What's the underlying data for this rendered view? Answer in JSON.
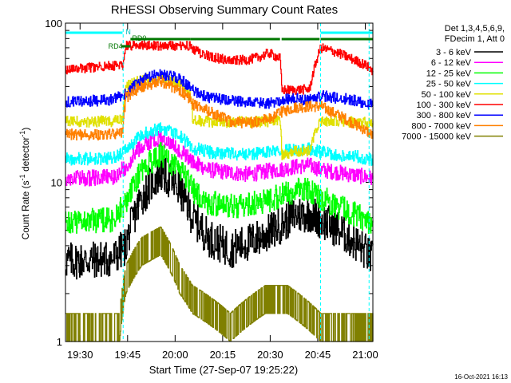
{
  "chart_data": {
    "type": "line",
    "title": "RHESSI Observing Summary Count Rates",
    "xlabel": "Start Time (27-Sep-07 19:25:22)",
    "ylabel_main": "Count Rate (s",
    "ylabel_sup1": "-1",
    "ylabel_mid": " detector",
    "ylabel_sup2": "-1",
    "ylabel_end": ")",
    "yscale": "log",
    "ylim": [
      1,
      100
    ],
    "xlim_minutes": [
      0,
      97
    ],
    "ytick_labels": [
      "1",
      "10",
      "100"
    ],
    "x_ticks": [
      {
        "t": 4.6,
        "label": "19:30"
      },
      {
        "t": 19.6,
        "label": "19:45"
      },
      {
        "t": 34.6,
        "label": "20:00"
      },
      {
        "t": 49.6,
        "label": "20:15"
      },
      {
        "t": 64.6,
        "label": "20:30"
      },
      {
        "t": 79.6,
        "label": "20:45"
      },
      {
        "t": 94.6,
        "label": "21:00"
      }
    ],
    "legend": {
      "header1": "Det 1,3,4,5,6,9,",
      "header2": "FDecim 1, Att 0"
    },
    "footer_date": "16-Oct-2021 16:13",
    "annotations": {
      "night_label": "N",
      "rd4_label": "RD4",
      "rd0_label": "RD0",
      "night_intervals": [
        [
          0,
          18
        ],
        [
          80.5,
          97
        ]
      ],
      "rd4_interval": [
        17.5,
        20.5
      ],
      "rd0_intervals": [
        [
          20.5,
          39.5
        ],
        [
          39.5,
          67.7
        ],
        [
          68.2,
          80.2
        ],
        [
          80.5,
          97
        ]
      ],
      "saa_lines": [
        18.2,
        80.5,
        95.8
      ]
    },
    "series": [
      {
        "name": "3 - 6 keV",
        "color": "#000000",
        "baseline": 3.2,
        "peak": 11.5,
        "noise": 0.12,
        "segments": [
          [
            2.6,
            5.5
          ],
          [
            5.5,
            7.5
          ],
          [
            7.5,
            5.2
          ],
          [
            5.2,
            6.8
          ],
          [
            6.8,
            5.8
          ],
          [
            5.8,
            6.2
          ],
          [
            6.2,
            3.2
          ]
        ],
        "x": [
          0,
          15,
          19,
          24,
          30,
          36,
          40,
          45,
          52,
          58,
          64,
          68,
          72,
          77,
          80.5,
          85,
          90,
          95,
          97
        ],
        "values": [
          3.2,
          3.3,
          4.0,
          8.0,
          11.5,
          9.0,
          6.0,
          4.5,
          3.8,
          4.2,
          4.8,
          5.4,
          6.2,
          6.4,
          5.8,
          5.2,
          4.4,
          3.6,
          3.2
        ]
      },
      {
        "name": "6 - 12 keV",
        "color": "#ff00ff",
        "baseline": 10.5,
        "peak": 19.0,
        "noise": 0.05,
        "x": [
          0,
          15,
          19,
          24,
          30,
          36,
          40,
          45,
          52,
          58,
          64,
          68,
          72,
          77,
          80.5,
          85,
          90,
          95,
          97
        ],
        "values": [
          10.5,
          10.8,
          12.5,
          17.0,
          19.0,
          16.0,
          13.5,
          12.0,
          11.5,
          11.2,
          11.8,
          12.0,
          12.5,
          12.8,
          12.0,
          11.6,
          11.2,
          10.8,
          10.5
        ]
      },
      {
        "name": "12 - 25 keV",
        "color": "#00ff00",
        "baseline": 5.5,
        "peak": 15.0,
        "noise": 0.08,
        "x": [
          0,
          15,
          19,
          24,
          30,
          36,
          40,
          45,
          52,
          58,
          64,
          68,
          72,
          77,
          80.5,
          85,
          90,
          95,
          97
        ],
        "values": [
          5.6,
          5.8,
          7.5,
          12.0,
          15.0,
          12.0,
          9.0,
          7.5,
          7.0,
          7.2,
          7.8,
          8.2,
          8.8,
          9.0,
          8.0,
          7.2,
          6.5,
          5.8,
          5.5
        ]
      },
      {
        "name": "25 - 50 keV",
        "color": "#00ffff",
        "baseline": 13.5,
        "peak": 22.0,
        "noise": 0.04,
        "x": [
          0,
          15,
          19,
          24,
          30,
          36,
          40,
          45,
          52,
          58,
          64,
          68,
          72,
          77,
          80.5,
          85,
          90,
          95,
          97
        ],
        "values": [
          14.0,
          14.2,
          16.0,
          20.0,
          22.0,
          19.5,
          16.5,
          15.5,
          15.2,
          15.0,
          15.5,
          15.8,
          16.0,
          16.2,
          15.5,
          15.0,
          14.6,
          14.2,
          13.8
        ]
      },
      {
        "name": "50 - 100 keV",
        "color": "#e0e000",
        "baseline": 24.0,
        "peak": 45.0,
        "noise": 0.035,
        "x": [
          0,
          15,
          18,
          19,
          24,
          30,
          36,
          39.5,
          40,
          45,
          52,
          58,
          64,
          67.7,
          68.2,
          72,
          77,
          80.5,
          85,
          90,
          95,
          97
        ],
        "values": [
          24.0,
          24.2,
          24.5,
          40.0,
          44.0,
          45.0,
          42.0,
          36.0,
          24.5,
          24.0,
          24.0,
          24.0,
          24.2,
          24.2,
          15.0,
          15.6,
          15.8,
          24.5,
          24.2,
          24.0,
          23.6,
          23.0
        ]
      },
      {
        "name": "100 - 300 keV",
        "color": "#ff0000",
        "baseline": 52.0,
        "peak": 72.0,
        "noise": 0.03,
        "x": [
          0,
          10,
          15,
          18,
          19,
          24,
          30,
          36,
          39.5,
          40,
          45,
          52,
          58,
          62,
          64,
          67.7,
          68.2,
          72,
          77,
          80.5,
          85,
          90,
          95,
          97
        ],
        "values": [
          51.0,
          53.0,
          54.0,
          54.0,
          72.0,
          72.0,
          72.0,
          72.0,
          72.0,
          68.0,
          62.0,
          58.0,
          59.0,
          62.0,
          65.0,
          60.0,
          38.0,
          38.0,
          38.5,
          70.0,
          66.0,
          60.0,
          54.0,
          50.0
        ]
      },
      {
        "name": "300 - 800 keV",
        "color": "#0000ff",
        "baseline": 32.0,
        "peak": 48.0,
        "noise": 0.035,
        "x": [
          0,
          15,
          19,
          24,
          30,
          36,
          40,
          45,
          52,
          58,
          64,
          68,
          72,
          77,
          80.5,
          85,
          90,
          95,
          97
        ],
        "values": [
          32.0,
          33.0,
          36.0,
          44.0,
          48.0,
          45.0,
          38.0,
          34.0,
          32.5,
          32.0,
          31.0,
          33.0,
          33.5,
          33.0,
          35.0,
          34.0,
          33.0,
          31.5,
          30.5
        ]
      },
      {
        "name": "800 - 7000 keV",
        "color": "#ff8000",
        "baseline": 20.0,
        "peak": 43.0,
        "noise": 0.035,
        "x": [
          0,
          15,
          18,
          19,
          24,
          30,
          36,
          39.5,
          40,
          45,
          52,
          58,
          64,
          68,
          72,
          77,
          80.5,
          85,
          90,
          95,
          97
        ],
        "values": [
          20.0,
          20.0,
          20.5,
          34.0,
          40.0,
          43.0,
          38.0,
          33.0,
          31.0,
          28.0,
          24.0,
          23.5,
          25.0,
          27.5,
          29.5,
          30.0,
          30.0,
          27.0,
          24.0,
          21.0,
          19.5
        ]
      },
      {
        "name": "7000 - 15000 keV",
        "color": "#808000",
        "baseline": 1.5,
        "peak": 3.5,
        "noise": 0.0,
        "x": [
          0,
          17,
          18,
          19,
          24,
          30,
          36,
          40,
          52,
          63,
          70,
          80.5,
          81,
          97
        ],
        "values": [
          1.0,
          1.0,
          1.5,
          2.0,
          3.0,
          3.5,
          2.0,
          1.5,
          1.0,
          1.5,
          1.5,
          1.0,
          1.0,
          1.0
        ]
      }
    ]
  }
}
